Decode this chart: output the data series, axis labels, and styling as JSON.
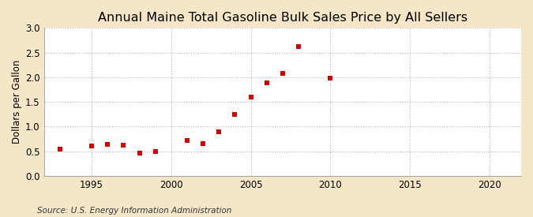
{
  "title": "Annual Maine Total Gasoline Bulk Sales Price by All Sellers",
  "ylabel": "Dollars per Gallon",
  "source": "Source: U.S. Energy Information Administration",
  "figure_bg_color": "#f5e6c8",
  "plot_bg_color": "#ffffff",
  "marker_color": "#cc0000",
  "years": [
    1993,
    1995,
    1996,
    1997,
    1998,
    1999,
    2001,
    2002,
    2003,
    2004,
    2005,
    2006,
    2007,
    2008,
    2010
  ],
  "values": [
    0.54,
    0.6,
    0.64,
    0.62,
    0.47,
    0.49,
    0.72,
    0.65,
    0.9,
    1.24,
    1.59,
    1.88,
    2.07,
    2.62,
    1.98
  ],
  "xlim": [
    1992,
    2022
  ],
  "ylim": [
    0.0,
    3.0
  ],
  "xticks": [
    1995,
    2000,
    2005,
    2010,
    2015,
    2020
  ],
  "yticks": [
    0.0,
    0.5,
    1.0,
    1.5,
    2.0,
    2.5,
    3.0
  ],
  "title_fontsize": 11.5,
  "label_fontsize": 8.5,
  "tick_fontsize": 8.5,
  "source_fontsize": 7.5,
  "grid_color": "#aaaaaa",
  "marker_size": 14
}
